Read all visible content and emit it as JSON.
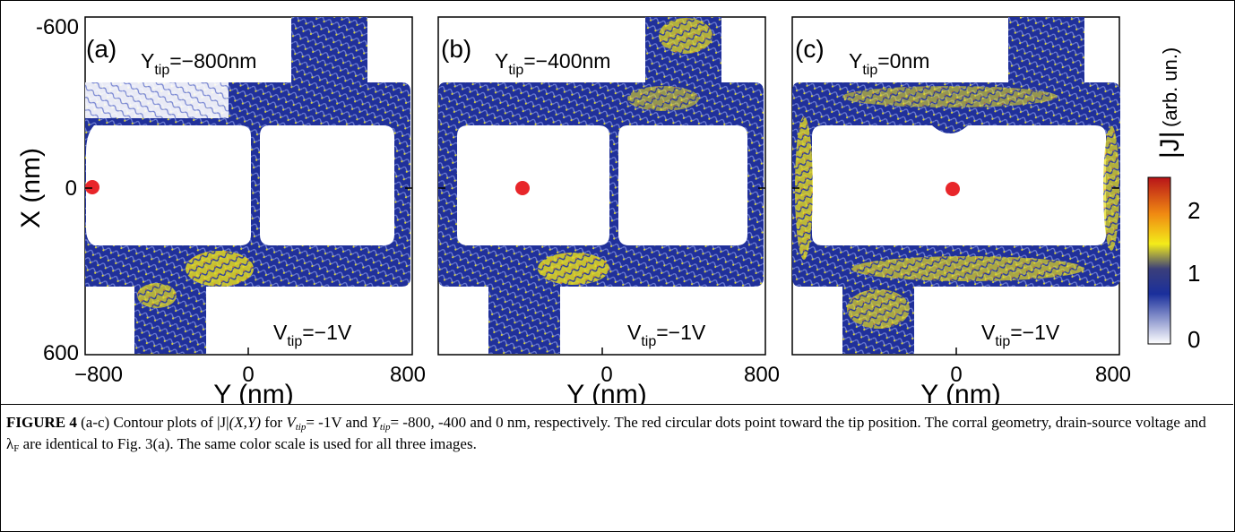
{
  "figure": {
    "panels": [
      {
        "tag": "(a)",
        "ytip_sub": "tip",
        "ytip_value": "=−800nm",
        "vtip_sub": "tip",
        "vtip_value": "=−1V"
      },
      {
        "tag": "(b)",
        "ytip_sub": "tip",
        "ytip_value": "=−400nm",
        "vtip_sub": "tip",
        "vtip_value": "=−1V"
      },
      {
        "tag": "(c)",
        "ytip_sub": "tip",
        "ytip_value": "=0nm",
        "vtip_sub": "tip",
        "vtip_value": "=−1V"
      }
    ],
    "x_axis": {
      "label": "Y (nm)",
      "ticks": [
        "−800",
        "0",
        "800"
      ]
    },
    "y_axis": {
      "label": "X (nm)",
      "ticks": [
        "-600",
        "0",
        "600"
      ]
    },
    "colorbar": {
      "label": "|J|",
      "unit": "(arb. un.)",
      "ticks": [
        "2",
        "1",
        "0"
      ],
      "colors": [
        "#ffffff",
        "#1a2f9c",
        "#f3ec1a",
        "#f08a12",
        "#c4161c"
      ]
    },
    "tip_dot_color": "#e8262a",
    "caption": {
      "lead": "FIGURE 4",
      "t1": " (a-c) Contour plots of |J|",
      "t2": "(X,Y)",
      "t3": " for ",
      "t4": "V",
      "t5": "tip",
      "t6": "= -1V and ",
      "t7": "Y",
      "t8": "tip",
      "t9": "= -800, -400 and 0 nm, respectively. The red circular dots point toward the tip position. The corral geometry, drain-source voltage and λ",
      "t10": "F",
      "t11": " are identical to Fig. 3(a). The same color scale is used for all three images."
    }
  },
  "chart_data": {
    "type": "heatmap",
    "panels": [
      {
        "panel": "(a)",
        "Y_tip_nm": -800,
        "V_tip_V": -1,
        "tip_dot": {
          "Y": -800,
          "X": 0
        }
      },
      {
        "panel": "(b)",
        "Y_tip_nm": -400,
        "V_tip_V": -1,
        "tip_dot": {
          "Y": -400,
          "X": 0
        }
      },
      {
        "panel": "(c)",
        "Y_tip_nm": 0,
        "V_tip_V": -1,
        "tip_dot": {
          "Y": 0,
          "X": 0
        }
      }
    ],
    "xlabel": "Y (nm)",
    "ylabel": "X (nm)",
    "xlim": [
      -800,
      800
    ],
    "ylim": [
      -600,
      600
    ],
    "colorbar": {
      "label": "|J| (arb. un.)",
      "range": [
        0,
        2.3
      ],
      "ticks": [
        0,
        1,
        2
      ]
    }
  }
}
